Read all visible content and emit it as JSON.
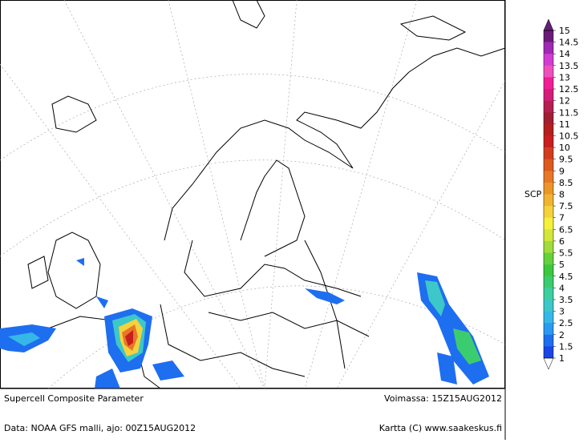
{
  "title": "Supercell Composite Parameter",
  "valid": "Voimassa: 15Z15AUG2012",
  "source": "Data: NOAA GFS malli, ajo: 00Z15AUG2012",
  "credit": "Kartta (C) www.saakeskus.fi",
  "colorbar": {
    "label": "SCP",
    "ticks": [
      "15",
      "14.5",
      "14",
      "13.5",
      "13",
      "12.5",
      "12",
      "11.5",
      "11",
      "10.5",
      "10",
      "9.5",
      "9",
      "8.5",
      "8",
      "7.5",
      "7",
      "6.5",
      "6",
      "5.5",
      "5",
      "4.5",
      "4",
      "3.5",
      "3",
      "2.5",
      "2",
      "1.5",
      "1"
    ],
    "colors": [
      "#6a1a78",
      "#a028b4",
      "#d23cd2",
      "#f050be",
      "#f01e96",
      "#d21e78",
      "#b41e50",
      "#a01e32",
      "#b41e1e",
      "#c81e1e",
      "#d23c1e",
      "#dc5a1e",
      "#e67828",
      "#eb9628",
      "#f0b432",
      "#f5d23c",
      "#f5f03c",
      "#d2e63c",
      "#a0dc3c",
      "#64d23c",
      "#3cc83c",
      "#3ccc70",
      "#3cd0a0",
      "#3cc8c8",
      "#35b8e8",
      "#2a9af0",
      "#1e6ef0",
      "#1a46e6"
    ],
    "top_color": "#641e78",
    "bottom_color": "#ffffff"
  }
}
